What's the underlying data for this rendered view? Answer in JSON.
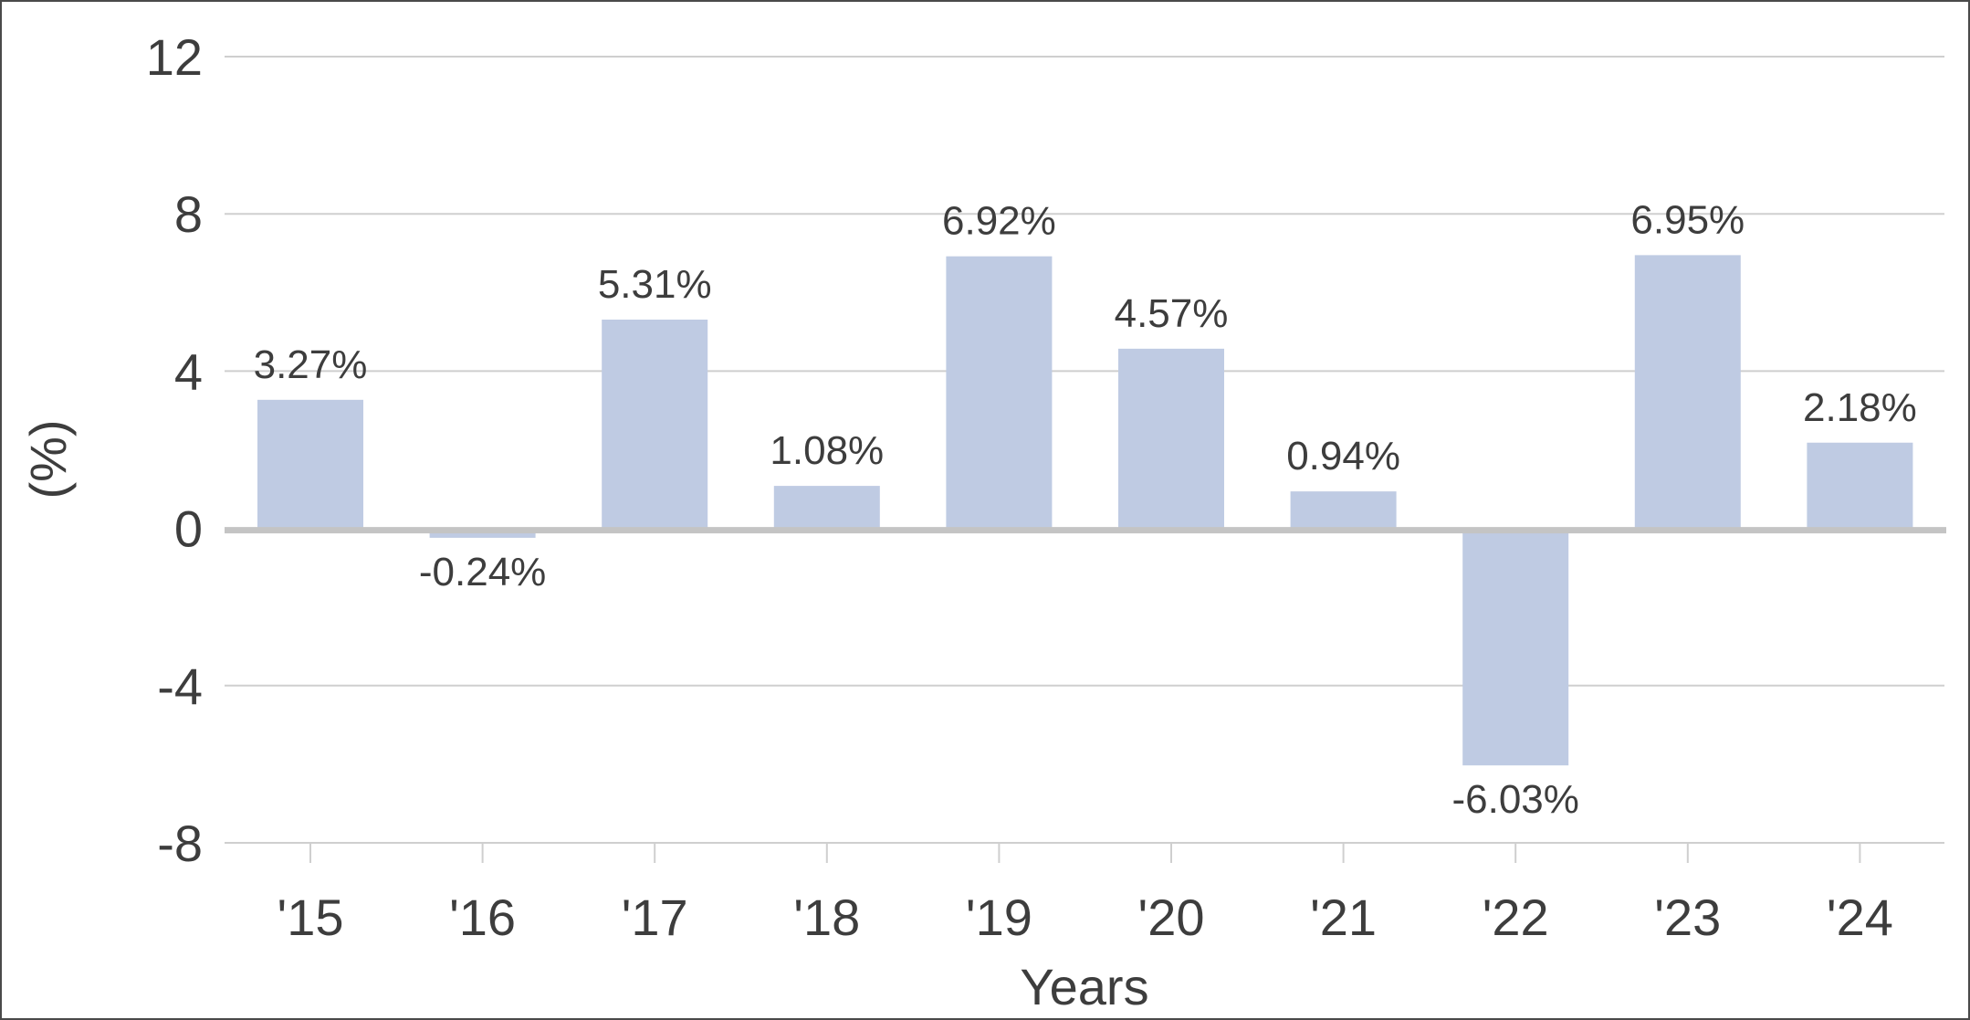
{
  "chart_data": {
    "type": "bar",
    "title": "",
    "xlabel": "Years",
    "ylabel": "(%)",
    "categories": [
      "'15",
      "'16",
      "'17",
      "'18",
      "'19",
      "'20",
      "'21",
      "'22",
      "'23",
      "'24"
    ],
    "values": [
      3.27,
      -0.24,
      5.31,
      1.08,
      6.92,
      4.57,
      0.94,
      -6.03,
      6.95,
      2.18
    ],
    "data_labels": [
      "3.27%",
      "-0.24%",
      "5.31%",
      "1.08%",
      "6.92%",
      "4.57%",
      "0.94%",
      "-6.03%",
      "6.95%",
      "2.18%"
    ],
    "ylim": [
      -8,
      12
    ],
    "yticks": [
      12,
      8,
      4,
      0,
      -4,
      -8
    ],
    "grid": true,
    "legend": "none",
    "colors": {
      "bar": "#bfcbe3",
      "grid": "#cfcfcf",
      "zero_line": "#c4c4c4",
      "text": "#3d3d3d"
    }
  }
}
